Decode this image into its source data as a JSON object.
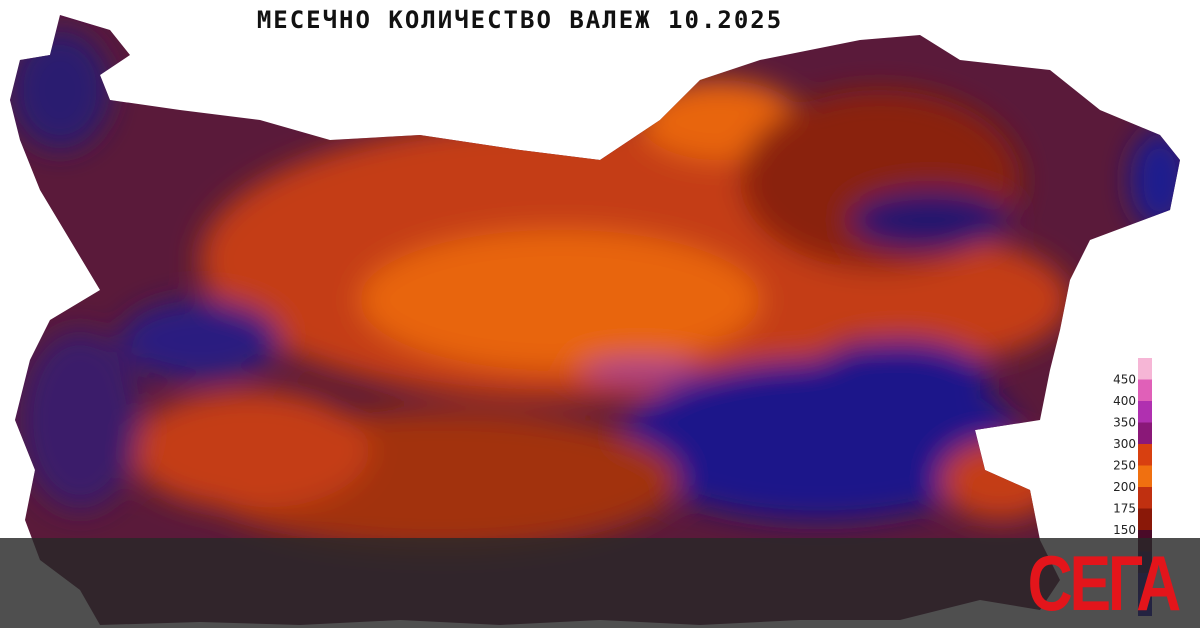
{
  "title": "МЕСЕЧНО КОЛИЧЕСТВО ВАЛЕЖ   10.2025",
  "legend": {
    "labels": [
      450,
      400,
      350,
      300,
      250,
      200,
      175,
      150
    ]
  },
  "logo": "СЕГА"
}
